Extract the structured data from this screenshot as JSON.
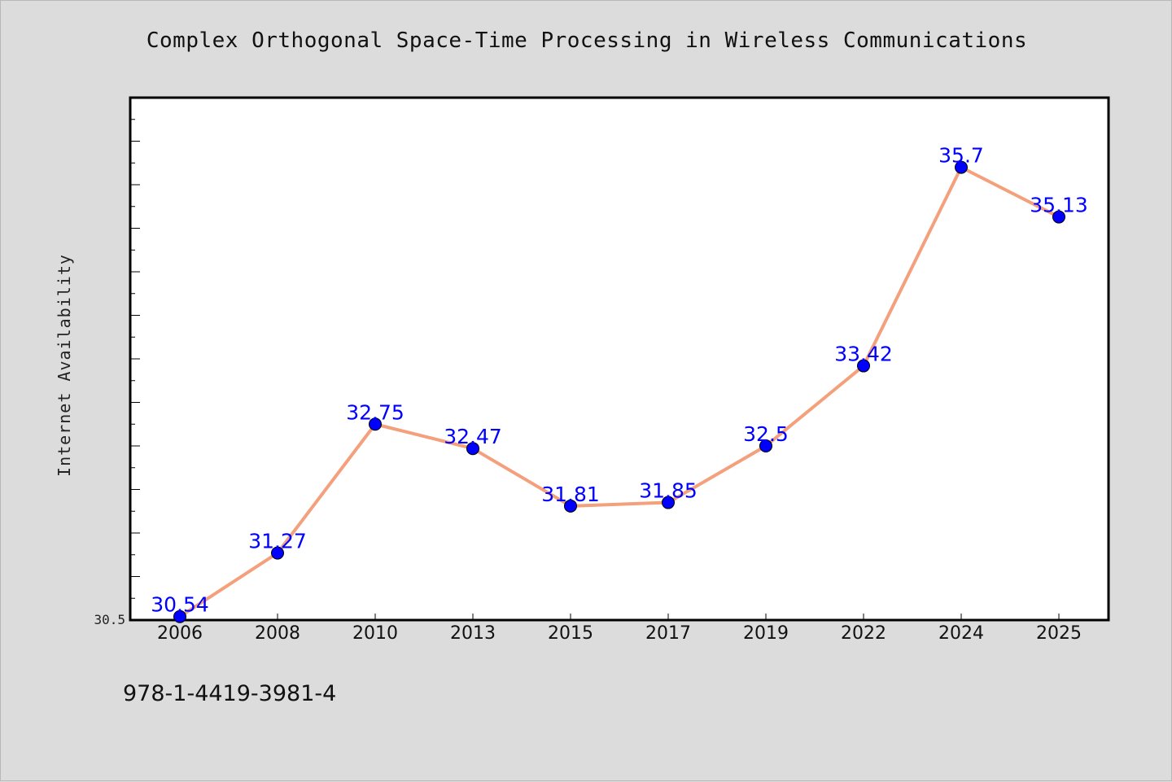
{
  "isbn": "978-1-4419-3981-4",
  "colors": {
    "background": "#dcdcdc",
    "plot_background": "#ffffff",
    "line": "#f4a07c",
    "marker": "#0000ff",
    "data_label": "#0000ff"
  },
  "chart_data": {
    "type": "line",
    "title": "Complex Orthogonal Space-Time Processing in Wireless Communications",
    "xlabel": "",
    "ylabel": "Internet Availability",
    "categories": [
      "2006",
      "2008",
      "2010",
      "2013",
      "2015",
      "2017",
      "2019",
      "2022",
      "2024",
      "2025"
    ],
    "series": [
      {
        "values": [
          30.54,
          31.27,
          32.75,
          32.47,
          31.81,
          31.85,
          32.5,
          33.42,
          35.7,
          35.13
        ]
      }
    ],
    "y_tick_labels": [
      "30.5"
    ],
    "ylim": [
      30.5,
      36.5
    ],
    "grid": false,
    "legend": "none"
  }
}
